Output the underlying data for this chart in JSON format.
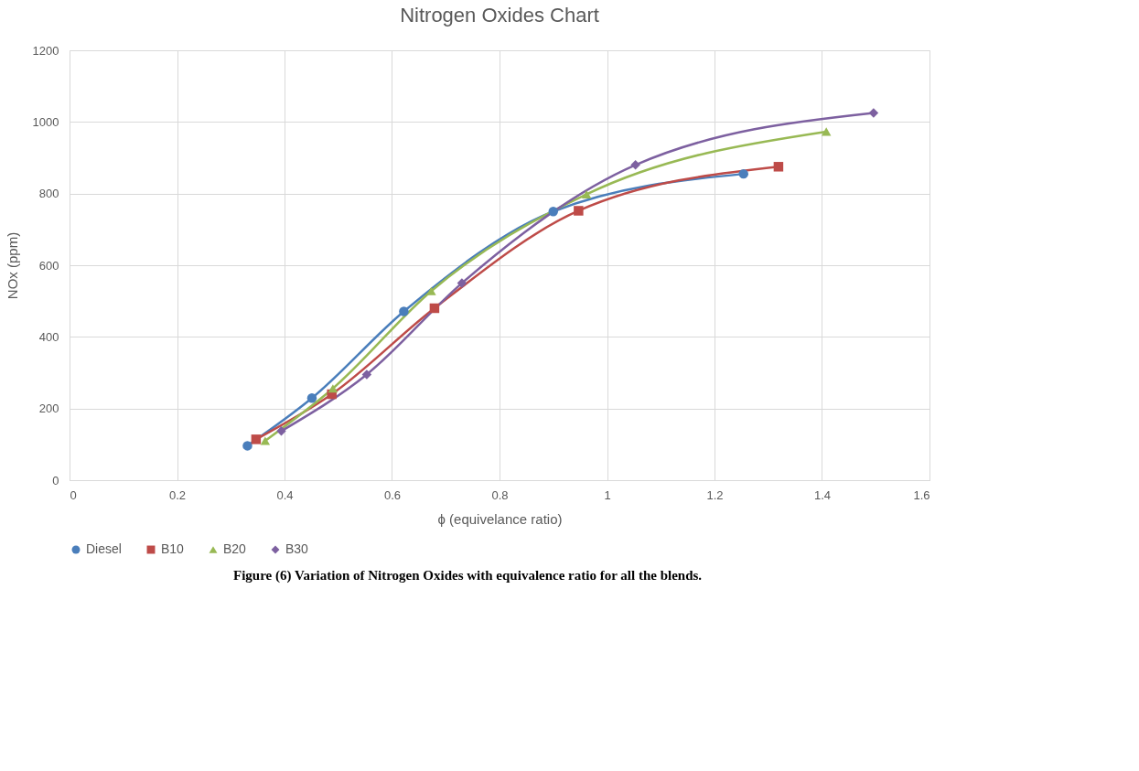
{
  "chart_data": {
    "type": "line",
    "title": "Nitrogen Oxides Chart",
    "xlabel": "ϕ (equivelance ratio)",
    "ylabel": "NOx  (ppm)",
    "annotations": [
      "Figure (6) Variation of Nitrogen Oxides with equivalence ratio for all the blends."
    ],
    "xlim": [
      0,
      1.6
    ],
    "xticks": [
      0,
      0.2,
      0.4,
      0.6,
      0.8,
      1,
      1.2,
      1.4,
      1.6
    ],
    "ylim": [
      0,
      1200
    ],
    "yticks": [
      0,
      200,
      400,
      600,
      800,
      1000,
      1200
    ],
    "grid": true,
    "legend": "bottom",
    "line_style": "solid",
    "series": [
      {
        "name": "Diesel",
        "color": "#4a7ebb",
        "marker": "circle",
        "x": [
          0.331,
          0.451,
          0.622,
          0.9,
          1.254
        ],
        "values": [
          96,
          229,
          471,
          750,
          855
        ]
      },
      {
        "name": "B10",
        "color": "#be4b48",
        "marker": "square",
        "x": [
          0.347,
          0.488,
          0.679,
          0.947,
          1.319
        ],
        "values": [
          114,
          240,
          480,
          752,
          875
        ]
      },
      {
        "name": "B20",
        "color": "#98b954",
        "marker": "triangle",
        "x": [
          0.364,
          0.49,
          0.673,
          0.962,
          1.408
        ],
        "values": [
          110,
          256,
          528,
          798,
          973
        ]
      },
      {
        "name": "B30",
        "color": "#7d60a0",
        "marker": "diamond",
        "x": [
          0.394,
          0.553,
          0.73,
          1.053,
          1.496
        ],
        "values": [
          137,
          295,
          550,
          880,
          1025
        ]
      }
    ]
  }
}
